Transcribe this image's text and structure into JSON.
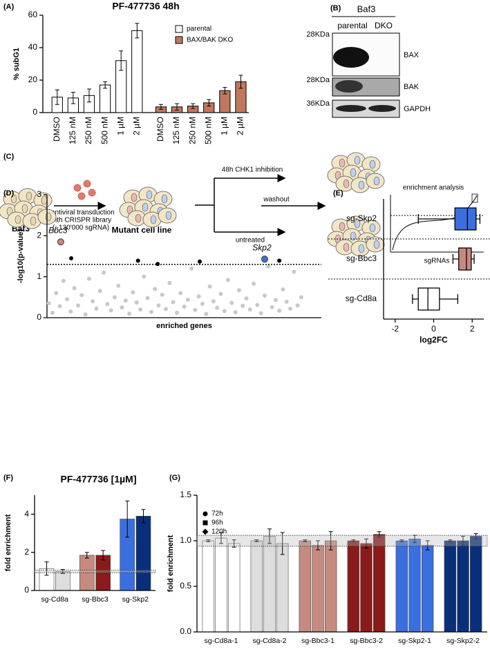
{
  "chart_data": [
    {
      "panel_label": "(A)",
      "type": "bar",
      "title": "PF-477736 48h",
      "ylabel": "% subG1",
      "categories": [
        "DMSO",
        "125 nM",
        "250 nM",
        "500 nM",
        "1 µM",
        "2 µM"
      ],
      "series": [
        {
          "name": "parental",
          "color": "#ffffff",
          "values": [
            9.5,
            9,
            10.5,
            17,
            32,
            50.5
          ],
          "errors": [
            4.5,
            3.5,
            4,
            2,
            6,
            4.5
          ]
        },
        {
          "name": "BAX/BAK DKO",
          "color": "#c0785c",
          "values": [
            3.5,
            3.5,
            4,
            6,
            13.5,
            19
          ],
          "errors": [
            1.5,
            2,
            1.5,
            2,
            2,
            4
          ]
        }
      ],
      "ylim": [
        0,
        60
      ],
      "yticks": [
        0,
        20,
        40,
        60
      ]
    },
    {
      "panel_label": "(D)",
      "type": "scatter",
      "ylabel": "-log10(p-value)",
      "xlabel": "enriched genes",
      "xlim": [
        0,
        600
      ],
      "ylim": [
        0,
        3
      ],
      "yticks": [
        0,
        1,
        2,
        3
      ],
      "threshold": 1.3,
      "series": [
        {
          "name": "Bbc3",
          "color": "#c9877a",
          "x": [
            30
          ],
          "values": [
            1.85
          ]
        },
        {
          "name": "Skp2",
          "color": "#3f6fdc",
          "x": [
            476
          ],
          "values": [
            1.43
          ]
        },
        {
          "color": "#000000",
          "x": [
            53,
            199,
            242,
            334,
            508
          ],
          "values": [
            1.45,
            1.39,
            1.31,
            1.37,
            1.39
          ]
        },
        {
          "color": "#c8c8c8",
          "x": [
            4,
            12,
            20,
            28,
            36,
            44,
            52,
            60,
            68,
            76,
            84,
            92,
            100,
            108,
            116,
            124,
            132,
            140,
            148,
            156,
            164,
            172,
            180,
            188,
            196,
            204,
            212,
            220,
            228,
            236,
            244,
            252,
            260,
            268,
            276,
            284,
            292,
            300,
            308,
            316,
            324,
            332,
            340,
            348,
            356,
            364,
            372,
            380,
            388,
            396,
            404,
            412,
            420,
            428,
            436,
            444,
            452,
            460,
            468,
            476,
            484,
            492,
            500,
            508,
            516,
            524,
            532,
            540,
            548,
            556
          ],
          "values": [
            0.35,
            0.12,
            0.6,
            0.28,
            0.9,
            0.45,
            0.15,
            0.72,
            0.3,
            0.55,
            0.08,
            0.95,
            0.4,
            0.22,
            0.65,
            1.1,
            0.33,
            0.18,
            0.5,
            0.78,
            0.25,
            0.42,
            0.1,
            0.62,
            0.37,
            0.2,
            1.0,
            0.48,
            0.14,
            0.7,
            0.3,
            0.56,
            0.21,
            0.85,
            0.38,
            0.12,
            0.6,
            0.27,
            0.44,
            1.2,
            0.19,
            0.52,
            0.34,
            0.09,
            0.76,
            0.4,
            0.24,
            0.58,
            0.16,
            0.92,
            0.36,
            0.13,
            0.67,
            0.29,
            0.47,
            0.2,
            0.83,
            0.31,
            0.11,
            0.54,
            1.25,
            0.26,
            0.43,
            0.17,
            0.69,
            0.39,
            0.22,
            1.12,
            0.3,
            0.5
          ]
        }
      ]
    },
    {
      "panel_label": "(E)",
      "type": "box",
      "xlabel": "log2FC",
      "categories": [
        "sg-Skp2",
        "sg-Bbc3",
        "sg-Cd8a"
      ],
      "colors": [
        "#3a6fe0",
        "#c58a80",
        "#ffffff"
      ],
      "boxes": [
        {
          "min": -0.8,
          "q1": 1.1,
          "median": 1.75,
          "q3": 2.2,
          "max": 2.4
        },
        {
          "min": 1.0,
          "q1": 1.3,
          "median": 1.7,
          "q3": 1.95,
          "max": 2.1
        },
        {
          "min": -1.1,
          "q1": -0.8,
          "median": -0.3,
          "q3": 0.3,
          "max": 1.25
        }
      ],
      "xlim": [
        -2.6,
        2.6
      ],
      "xticks": [
        -2,
        0,
        2
      ]
    },
    {
      "panel_label": "(F)",
      "type": "grouped_bar",
      "title": "PF-477736 [1µM]",
      "ylabel": "fold enrichment",
      "categories": [
        "sg-Cd8a",
        "sg-Bbc3",
        "sg-Skp2"
      ],
      "series": [
        {
          "colors": [
            "#ffffff",
            "#c58a80",
            "#3a6fe0"
          ],
          "values": [
            1.15,
            1.85,
            3.75
          ],
          "errors": [
            0.35,
            0.15,
            0.95
          ]
        },
        {
          "colors": [
            "#dddddd",
            "#8b1a1a",
            "#0a2f7a"
          ],
          "values": [
            1.0,
            1.85,
            3.9
          ],
          "errors": [
            0.1,
            0.25,
            0.35
          ]
        }
      ],
      "reference_band": [
        0.93,
        1.07
      ],
      "ylim": [
        0,
        5
      ],
      "yticks": [
        0,
        2,
        4
      ]
    },
    {
      "panel_label": "(G)",
      "type": "grouped_bar",
      "ylabel": "fold enrichment",
      "categories": [
        "sg-Cd8a-1",
        "sg-Cd8a-2",
        "sg-Bbc3-1",
        "sg-Bbc3-2",
        "sg-Skp2-1",
        "sg-Skp2-2"
      ],
      "colors": [
        "#ffffff",
        "#dddddd",
        "#c58a80",
        "#8b1a1a",
        "#3a6fe0",
        "#0a2f7a"
      ],
      "series": [
        {
          "name": "72h",
          "marker": "circle",
          "values": [
            1.0,
            1.0,
            1.0,
            1.0,
            1.0,
            1.0
          ],
          "errors": [
            0.01,
            0.01,
            0.01,
            0.01,
            0.01,
            0.01
          ]
        },
        {
          "name": "96h",
          "marker": "square",
          "values": [
            1.03,
            1.05,
            0.95,
            0.97,
            1.02,
            1.0
          ],
          "errors": [
            0.06,
            0.08,
            0.05,
            0.05,
            0.04,
            0.05
          ]
        },
        {
          "name": "120h",
          "marker": "diamond",
          "values": [
            0.97,
            0.97,
            1.0,
            1.07,
            0.95,
            1.05
          ],
          "errors": [
            0.04,
            0.12,
            0.1,
            0.03,
            0.05,
            0.03
          ]
        }
      ],
      "reference_band": [
        0.94,
        1.06
      ],
      "ylim": [
        0,
        1.5
      ],
      "yticks": [
        {
          "value": 0,
          "label": "0.0"
        },
        {
          "value": 0.5,
          "label": "0.5"
        },
        {
          "value": 1,
          "label": "1.0"
        },
        {
          "value": 1.5,
          "label": "1.5"
        }
      ]
    }
  ],
  "blot": {
    "panel_label": "(B)",
    "cell_line": "Baf3",
    "lanes": [
      "parental",
      "DKO"
    ],
    "bands": [
      {
        "marker": "28KDa",
        "protein": "BAX"
      },
      {
        "marker": "28KDa",
        "protein": "BAK"
      },
      {
        "marker": "36KDa",
        "protein": "GAPDH"
      }
    ]
  },
  "diagram": {
    "panel_label": "(C)",
    "start": "Baf3",
    "transduction": "Lentiviral transduction",
    "library": "with CRISPR library",
    "library_size": "(~130'000 sgRNA)",
    "mutant": "Mutant cell line",
    "treated": "48h CHK1 inhibition",
    "untreated": "untreated",
    "washout": "washout",
    "analysis": "enrichment analysis",
    "axis": "sgRNAs"
  }
}
